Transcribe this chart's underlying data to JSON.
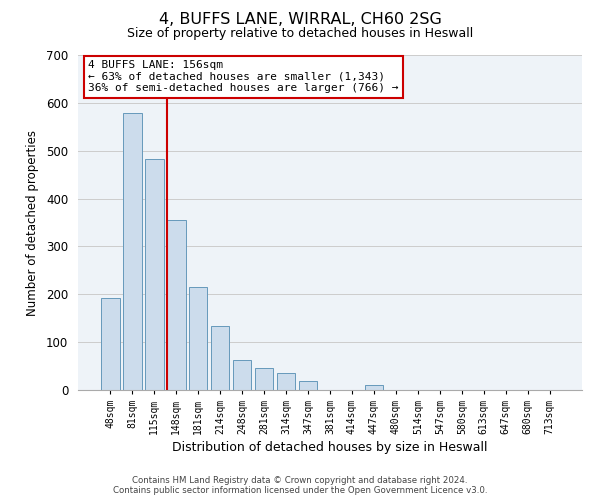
{
  "title": "4, BUFFS LANE, WIRRAL, CH60 2SG",
  "subtitle": "Size of property relative to detached houses in Heswall",
  "xlabel": "Distribution of detached houses by size in Heswall",
  "ylabel": "Number of detached properties",
  "bar_labels": [
    "48sqm",
    "81sqm",
    "115sqm",
    "148sqm",
    "181sqm",
    "214sqm",
    "248sqm",
    "281sqm",
    "314sqm",
    "347sqm",
    "381sqm",
    "414sqm",
    "447sqm",
    "480sqm",
    "514sqm",
    "547sqm",
    "580sqm",
    "613sqm",
    "647sqm",
    "680sqm",
    "713sqm"
  ],
  "bar_values": [
    193,
    578,
    483,
    355,
    215,
    134,
    63,
    45,
    35,
    18,
    0,
    0,
    10,
    0,
    0,
    0,
    0,
    0,
    0,
    0,
    0
  ],
  "bar_color": "#ccdcec",
  "bar_edge_color": "#6699bb",
  "vline_index": 3,
  "vline_color": "#cc0000",
  "ylim": [
    0,
    700
  ],
  "yticks": [
    0,
    100,
    200,
    300,
    400,
    500,
    600,
    700
  ],
  "annotation_text": "4 BUFFS LANE: 156sqm\n← 63% of detached houses are smaller (1,343)\n36% of semi-detached houses are larger (766) →",
  "annotation_box_facecolor": "#ffffff",
  "annotation_box_edgecolor": "#cc0000",
  "footer_line1": "Contains HM Land Registry data © Crown copyright and database right 2024.",
  "footer_line2": "Contains public sector information licensed under the Open Government Licence v3.0.",
  "background_color": "#ffffff",
  "grid_color": "#cccccc",
  "plot_bg_color": "#eef3f8"
}
